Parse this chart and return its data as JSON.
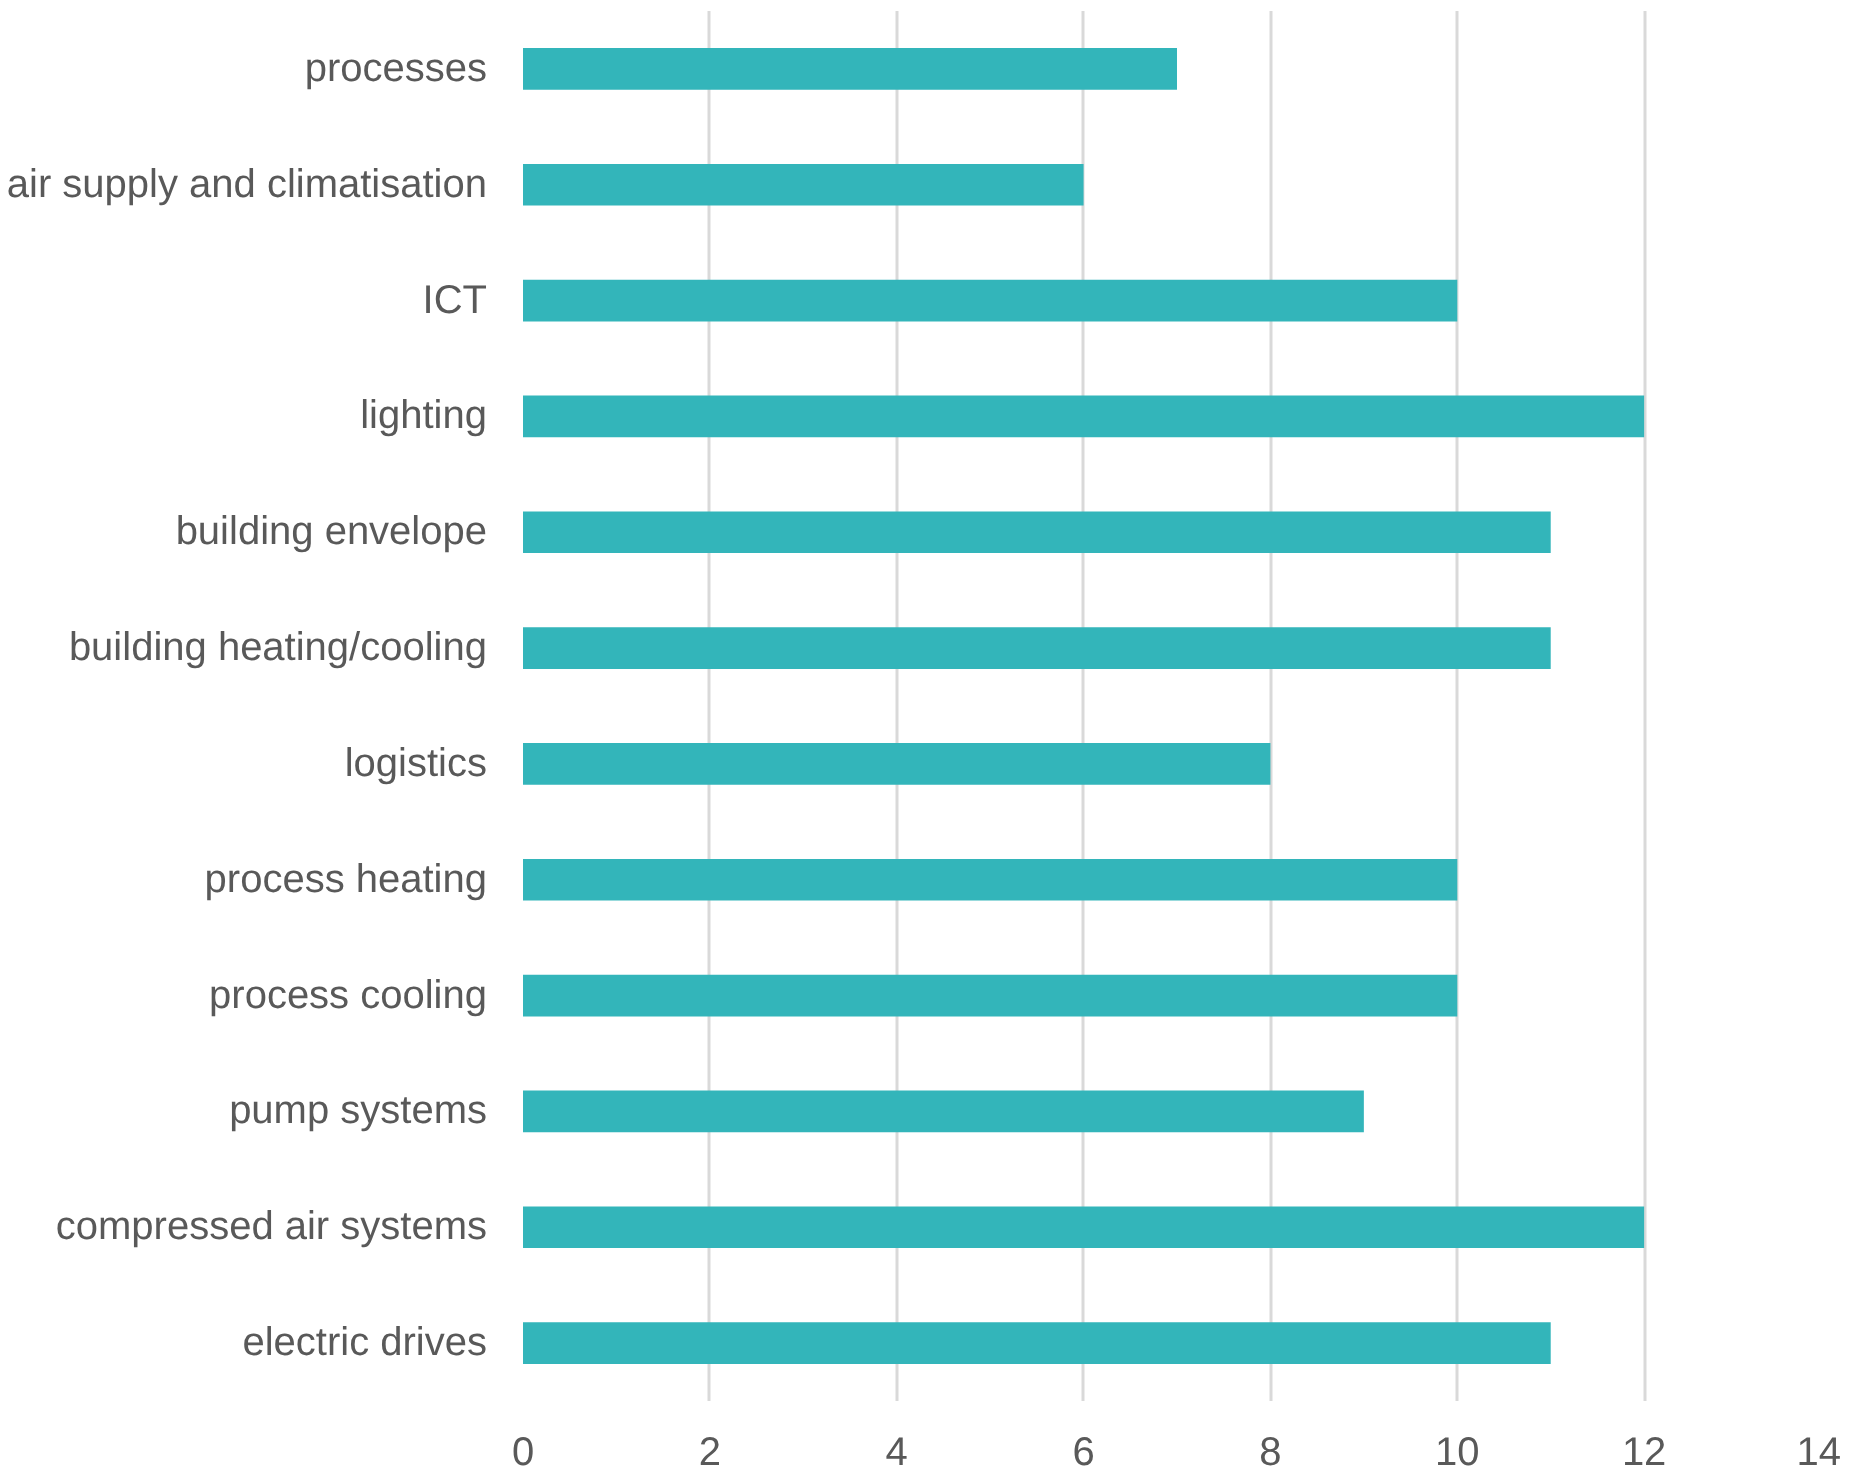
{
  "chart_data": {
    "type": "bar",
    "orientation": "horizontal",
    "categories": [
      "processes",
      "air supply and climatisation",
      "ICT",
      "lighting",
      "building envelope",
      "building heating/cooling",
      "logistics",
      "process heating",
      "process cooling",
      "pump systems",
      "compressed air systems",
      "electric drives"
    ],
    "values": [
      7,
      6,
      10,
      12,
      11,
      11,
      8,
      10,
      10,
      9,
      12,
      11
    ],
    "color": "#33b5ba",
    "xlim": [
      0,
      14
    ],
    "xticks": [
      0,
      2,
      4,
      6,
      8,
      10,
      12,
      14
    ],
    "grid": "x"
  }
}
